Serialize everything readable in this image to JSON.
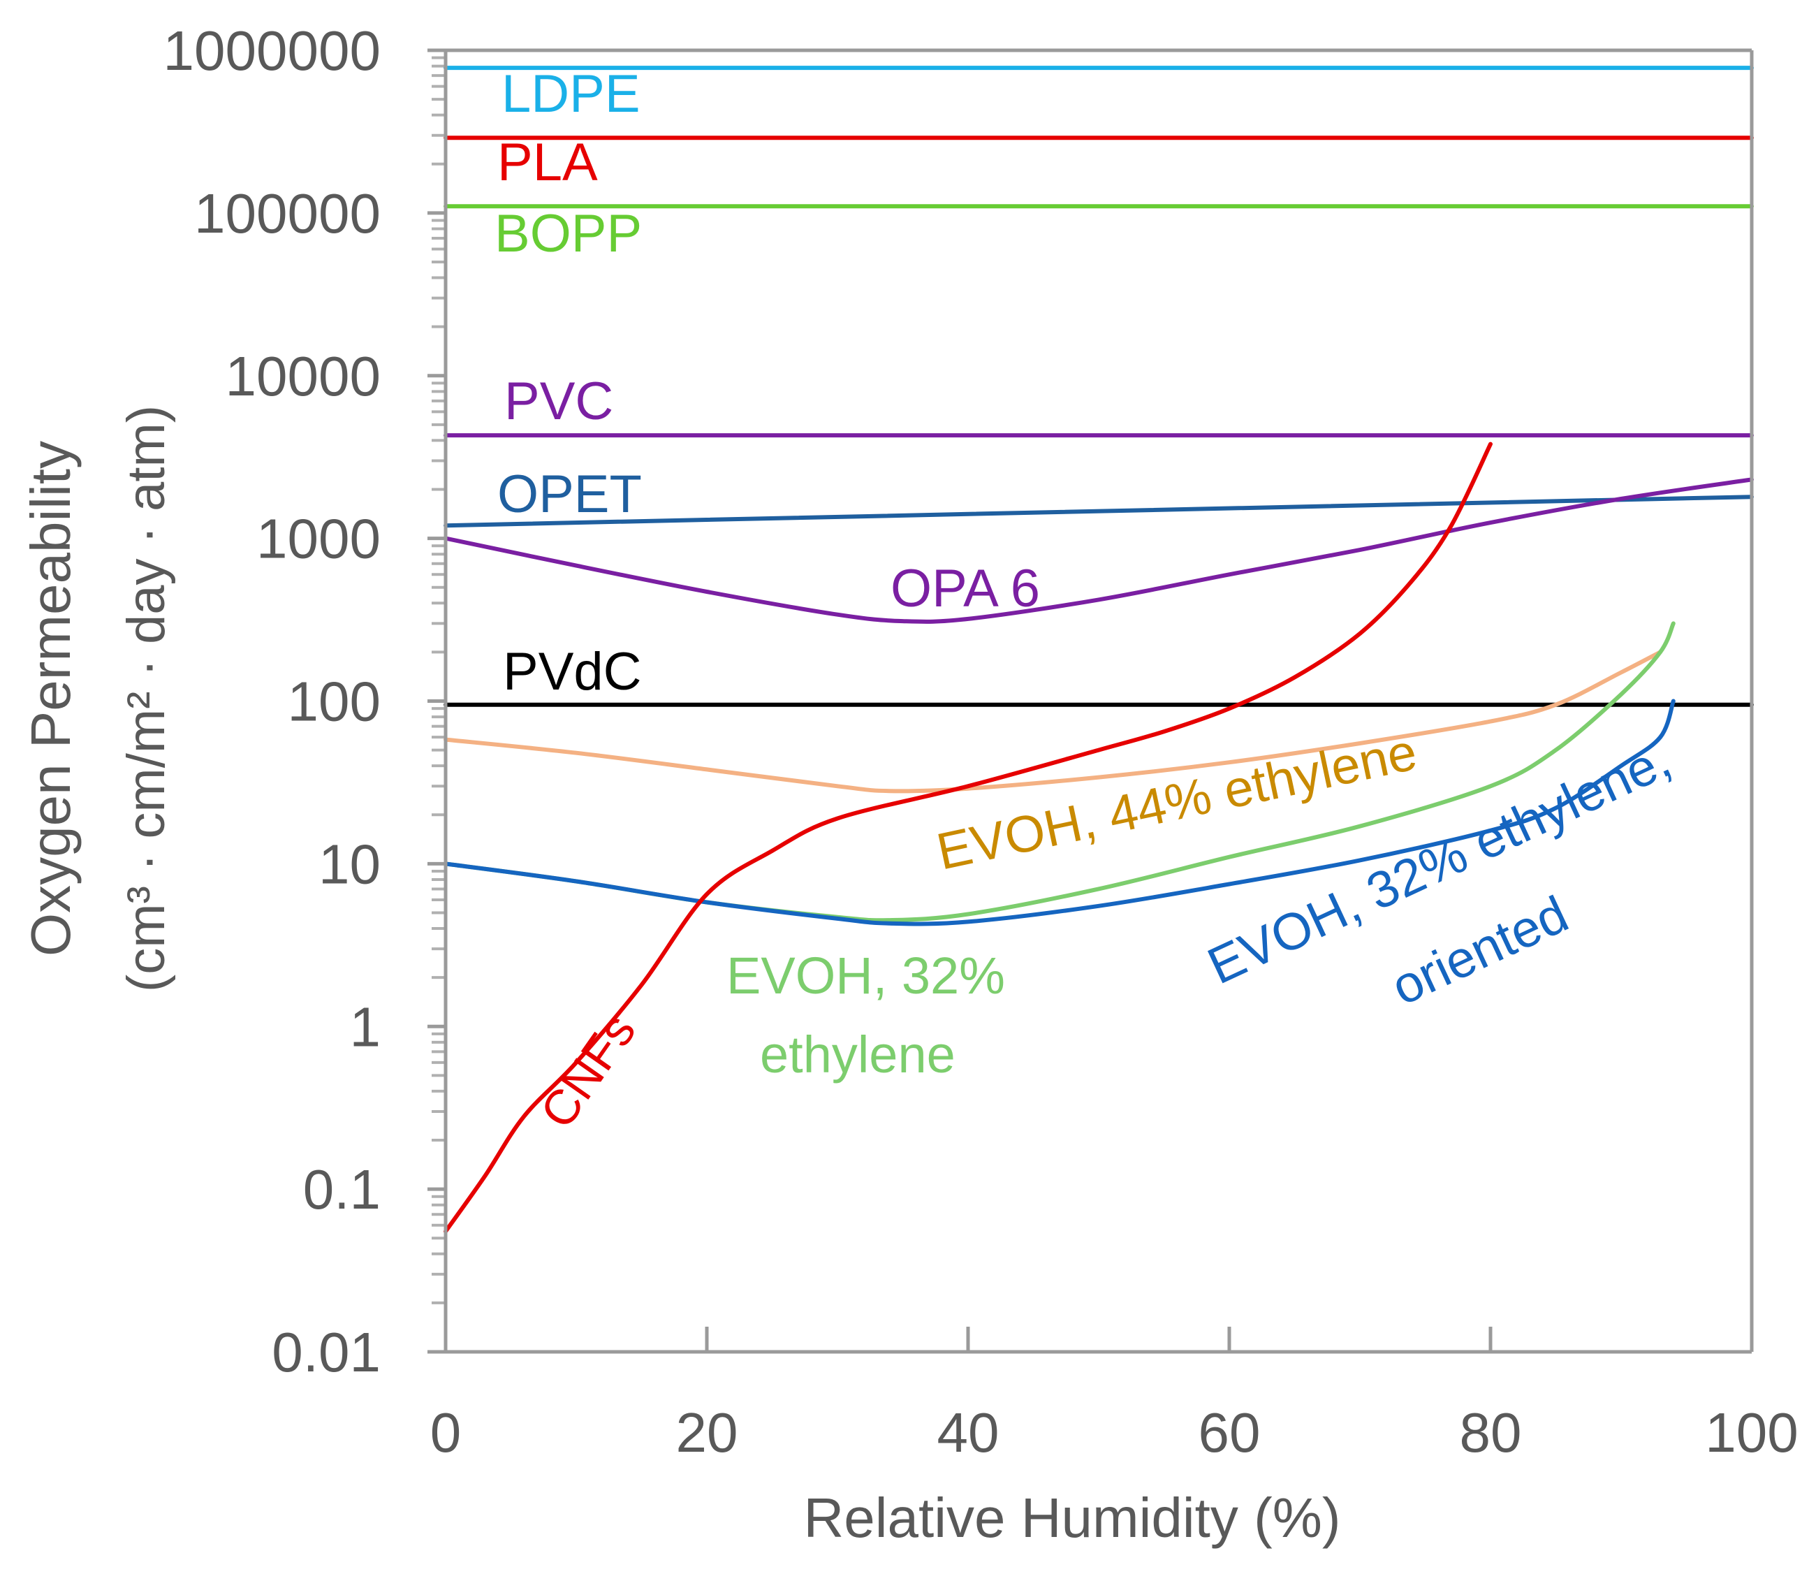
{
  "chart_data": {
    "type": "line",
    "title": "",
    "xlabel": "Relative Humidity (%)",
    "ylabel": "Oxygen Permeability",
    "ylabel_units": "(cm³ · cm/m² · day · atm)",
    "xlim": [
      0,
      100
    ],
    "ylim": [
      0.01,
      1000000
    ],
    "yscale": "log",
    "x_ticks": [
      0,
      20,
      40,
      60,
      80,
      100
    ],
    "x_tick_labels": [
      "0",
      "20",
      "40",
      "60",
      "80",
      "100"
    ],
    "y_ticks": [
      0.01,
      0.1,
      1,
      10,
      100,
      1000,
      10000,
      100000,
      1000000
    ],
    "y_tick_labels": [
      "0.01",
      "0.1",
      "1",
      "10",
      "100",
      "1000",
      "10000",
      "100000",
      "1000000"
    ],
    "grid": false,
    "series": [
      {
        "name": "LDPE",
        "color": "#1ab0e8",
        "x": [
          0,
          100
        ],
        "y": [
          780000,
          780000
        ]
      },
      {
        "name": "PLA",
        "color": "#e60000",
        "x": [
          0,
          100
        ],
        "y": [
          290000,
          290000
        ]
      },
      {
        "name": "BOPP",
        "color": "#66cc33",
        "x": [
          0,
          100
        ],
        "y": [
          110000,
          110000
        ]
      },
      {
        "name": "PVC",
        "color": "#7a1fa2",
        "x": [
          0,
          100
        ],
        "y": [
          4300,
          4300
        ]
      },
      {
        "name": "OPET",
        "color": "#1f5f9f",
        "x": [
          0,
          100
        ],
        "y": [
          1200,
          1800
        ]
      },
      {
        "name": "OPA 6",
        "color": "#7a1fa2",
        "x": [
          0,
          10,
          20,
          30,
          35,
          40,
          50,
          60,
          70,
          80,
          90,
          100
        ],
        "y": [
          1000,
          680,
          470,
          340,
          310,
          320,
          420,
          600,
          850,
          1250,
          1750,
          2300
        ]
      },
      {
        "name": "PVdC",
        "color": "#000000",
        "x": [
          0,
          100
        ],
        "y": [
          95,
          95
        ]
      },
      {
        "name": "EVOH, 44% ethylene",
        "color": "#f4b183",
        "x": [
          0,
          10,
          20,
          30,
          34,
          40,
          50,
          60,
          70,
          80,
          85,
          90,
          93
        ],
        "y": [
          58,
          48,
          38,
          30,
          28,
          29,
          34,
          42,
          55,
          75,
          95,
          150,
          200
        ]
      },
      {
        "name": "EVOH, 32% ethylene",
        "color": "#7ccd6d",
        "x": [
          0,
          10,
          20,
          30,
          34,
          40,
          50,
          60,
          70,
          80,
          85,
          90,
          93,
          94
        ],
        "y": [
          10,
          7.8,
          5.8,
          4.7,
          4.5,
          4.9,
          7,
          11,
          17,
          30,
          50,
          110,
          200,
          300
        ]
      },
      {
        "name": "EVOH, 32% ethylene, oriented",
        "color": "#1565c0",
        "x": [
          0,
          10,
          20,
          30,
          34,
          40,
          50,
          60,
          70,
          80,
          85,
          90,
          93,
          94
        ],
        "y": [
          10,
          7.8,
          5.8,
          4.6,
          4.3,
          4.4,
          5.5,
          7.5,
          10.5,
          16,
          22,
          40,
          60,
          100
        ]
      },
      {
        "name": "CNFs",
        "color": "#e60000",
        "x": [
          0,
          3,
          6,
          10,
          15,
          20,
          25,
          30,
          40,
          50,
          55,
          60,
          65,
          70,
          74,
          77,
          80
        ],
        "y": [
          0.055,
          0.12,
          0.28,
          0.6,
          1.8,
          6.5,
          12,
          19,
          30,
          50,
          65,
          90,
          140,
          260,
          550,
          1200,
          3800
        ]
      }
    ],
    "annotations": [
      {
        "text": "LDPE",
        "series": "LDPE",
        "color": "#1ab0e8"
      },
      {
        "text": "PLA",
        "series": "PLA",
        "color": "#e60000"
      },
      {
        "text": "BOPP",
        "series": "BOPP",
        "color": "#66cc33"
      },
      {
        "text": "PVC",
        "series": "PVC",
        "color": "#7a1fa2"
      },
      {
        "text": "OPET",
        "series": "OPET",
        "color": "#1f5f9f"
      },
      {
        "text": "OPA 6",
        "series": "OPA 6",
        "color": "#7a1fa2"
      },
      {
        "text": "PVdC",
        "series": "PVdC",
        "color": "#000000"
      },
      {
        "text": "EVOH, 44% ethylene",
        "series": "EVOH, 44% ethylene",
        "color": "#c98a00"
      },
      {
        "text": "EVOH, 32%",
        "series": "EVOH, 32% ethylene",
        "color": "#7ccd6d"
      },
      {
        "text": "ethylene",
        "series": "EVOH, 32% ethylene",
        "color": "#7ccd6d"
      },
      {
        "text": "EVOH, 32% ethylene,",
        "series": "EVOH, 32% ethylene, oriented",
        "color": "#1565c0"
      },
      {
        "text": "oriented",
        "series": "EVOH, 32% ethylene, oriented",
        "color": "#1565c0"
      },
      {
        "text": "CNFs",
        "series": "CNFs",
        "color": "#e60000"
      }
    ]
  }
}
